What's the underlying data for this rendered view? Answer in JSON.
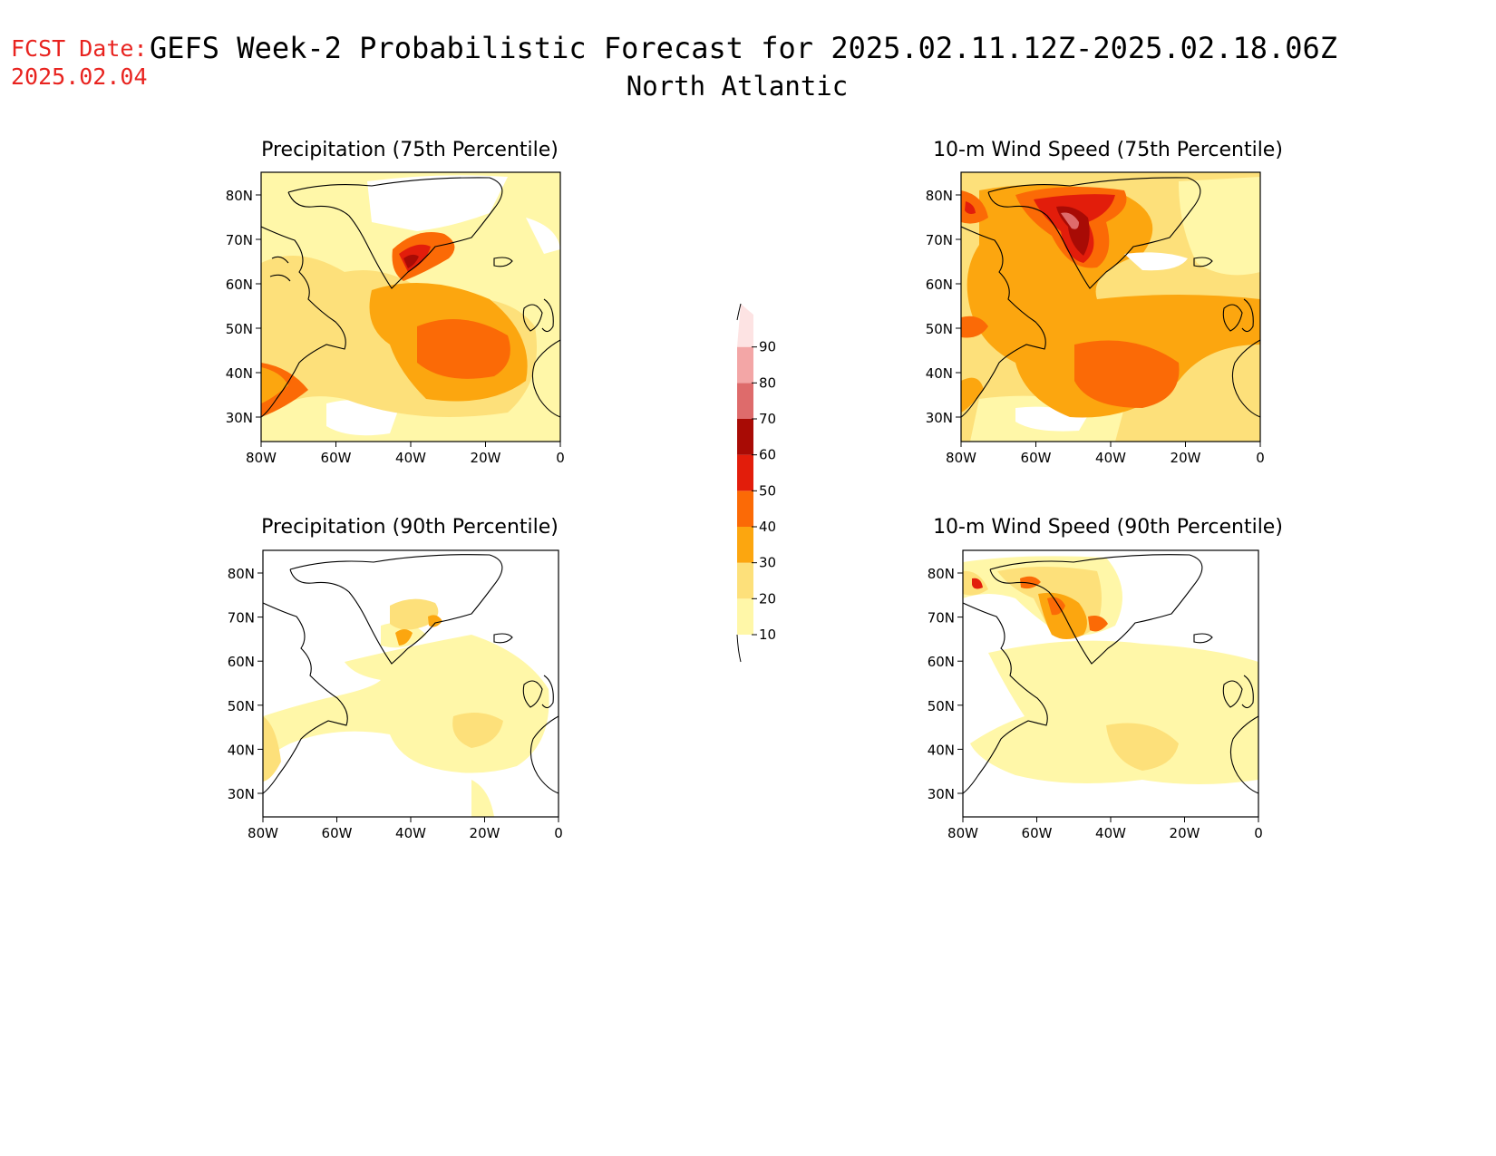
{
  "header": {
    "fcst_label": "FCST Date:",
    "fcst_date": "2025.02.04",
    "title": "GEFS Week-2 Probabilistic Forecast for 2025.02.11.12Z-2025.02.18.06Z",
    "subtitle": "North Atlantic"
  },
  "panels": [
    {
      "id": "precip75",
      "title": "Precipitation (75th Percentile)"
    },
    {
      "id": "wind75",
      "title": "10-m Wind Speed (75th Percentile)"
    },
    {
      "id": "precip90",
      "title": "Precipitation (90th Percentile)"
    },
    {
      "id": "wind90",
      "title": "10-m Wind Speed (90th Percentile)"
    }
  ],
  "axes": {
    "lat_labels": [
      "80N",
      "70N",
      "60N",
      "50N",
      "40N",
      "30N"
    ],
    "lon_labels": [
      "80W",
      "60W",
      "40W",
      "20W",
      "0"
    ]
  },
  "colorbar": {
    "levels": [
      "10",
      "20",
      "30",
      "40",
      "50",
      "60",
      "70",
      "80",
      "90"
    ],
    "colors": [
      "#fff7a8",
      "#fde07a",
      "#fca60f",
      "#fb6a06",
      "#e21d0b",
      "#a80b05",
      "#de6b6b",
      "#f3a6a6",
      "#fde3e3"
    ]
  }
}
